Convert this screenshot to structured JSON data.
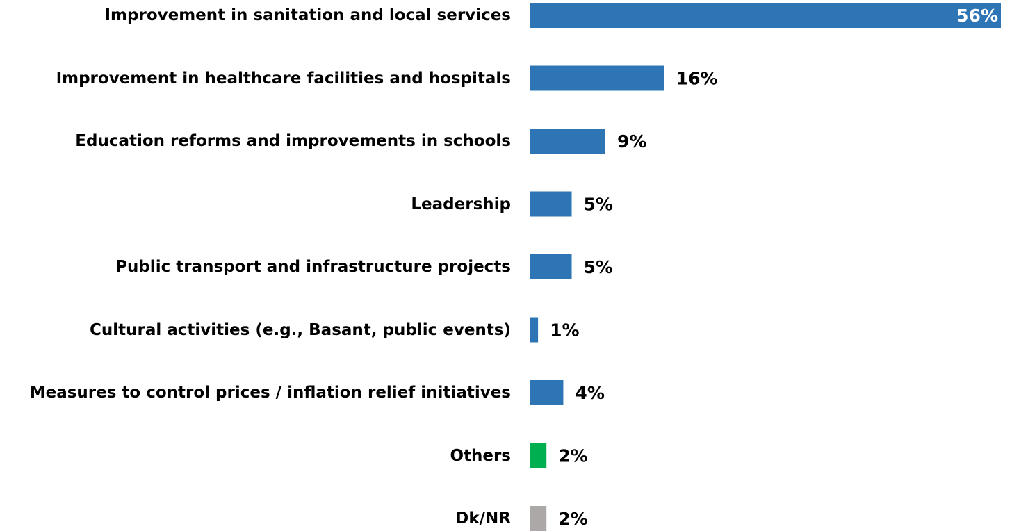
{
  "chart_data": {
    "type": "bar",
    "orientation": "horizontal",
    "categories": [
      "Improvement in sanitation and local services",
      "Improvement in healthcare facilities and hospitals",
      "Education reforms and improvements in schools",
      "Leadership",
      "Public transport and infrastructure projects",
      "Cultural activities (e.g., Basant, public events)",
      "Measures to control prices / inflation relief initiatives",
      "Others",
      "Dk/NR"
    ],
    "values": [
      56,
      16,
      9,
      5,
      5,
      1,
      4,
      2,
      2
    ],
    "value_labels": [
      "56%",
      "16%",
      "9%",
      "5%",
      "5%",
      "1%",
      "4%",
      "2%",
      "2%"
    ],
    "colors": [
      "#2e75b6",
      "#2e75b6",
      "#2e75b6",
      "#2e75b6",
      "#2e75b6",
      "#2e75b6",
      "#2e75b6",
      "#00b050",
      "#aca8a8"
    ],
    "xlim": [
      0,
      56
    ]
  }
}
